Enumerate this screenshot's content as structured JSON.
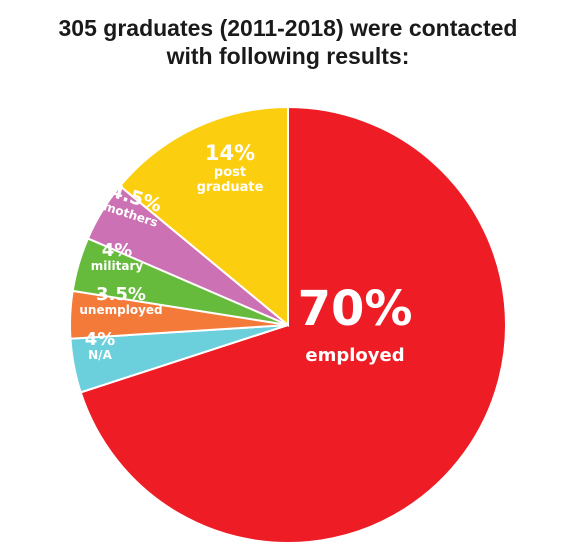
{
  "header": {
    "title_line1": "305 graduates (2011-2018) were contacted",
    "title_line2": "with following results:"
  },
  "chart_data": {
    "type": "pie",
    "title": "305 graduates (2011-2018) were contacted with following results:",
    "slices": [
      {
        "label": "employed",
        "pct_text": "70%",
        "value": 70,
        "color": "#ee1c25"
      },
      {
        "label": "N/A",
        "pct_text": "4%",
        "value": 4,
        "color": "#6ccfdc"
      },
      {
        "label": "unemployed",
        "pct_text": "3.5%",
        "value": 3.5,
        "color": "#f47a3a"
      },
      {
        "label": "military",
        "pct_text": "4%",
        "value": 4,
        "color": "#66bb3d"
      },
      {
        "label": "mothers",
        "pct_text": "4.5%",
        "value": 4.5,
        "color": "#cc71b3"
      },
      {
        "label": "post graduate",
        "pct_text": "14%",
        "value": 14,
        "color": "#fcce10"
      }
    ]
  }
}
